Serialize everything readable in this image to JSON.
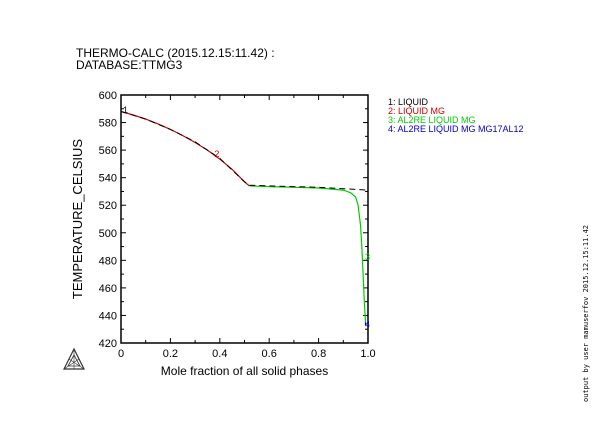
{
  "header": {
    "title_line1": "THERMO-CALC (2015.12.15:11.42) :",
    "title_line2": "DATABASE:TTMG3"
  },
  "side_note": "output by user mamuserfov 2015.12.15:11.42",
  "colors": {
    "axes": "#000000",
    "liquid_mg": "#cc0000",
    "al2re_liquid_mg": "#00cc00",
    "al2re_liquid_mg_mg17al12": "#0000cc",
    "dashed_reference": "#000000"
  },
  "chart_data": {
    "type": "line",
    "title": "THERMO-CALC (2015.12.15:11.42) : DATABASE:TTMG3",
    "xlabel": "Mole fraction of all solid phases",
    "ylabel": "TEMPERATURE_CELSIUS",
    "xlim": [
      0,
      1
    ],
    "ylim": [
      420,
      600
    ],
    "xticks": [
      0,
      0.2,
      0.4,
      0.6,
      0.8,
      1.0
    ],
    "xtick_labels": [
      "0",
      "0.2",
      "0.4",
      "0.6",
      "0.8",
      "1.0"
    ],
    "yticks": [
      420,
      440,
      460,
      480,
      500,
      520,
      540,
      560,
      580,
      600
    ],
    "ytick_labels": [
      "420",
      "440",
      "460",
      "480",
      "500",
      "520",
      "540",
      "560",
      "580",
      "600"
    ],
    "legend_position": "top-right",
    "series": [
      {
        "name": "2: LIQUID MG",
        "label": "2",
        "color": "#cc0000",
        "style": "solid",
        "x": [
          0.0,
          0.05,
          0.1,
          0.15,
          0.2,
          0.25,
          0.3,
          0.35,
          0.4,
          0.45,
          0.5,
          0.52
        ],
        "y": [
          588,
          585.5,
          582.5,
          579,
          575,
          570.5,
          565.5,
          560,
          553.5,
          546,
          537,
          534
        ]
      },
      {
        "name": "3: AL2RE LIQUID MG",
        "label": "3",
        "color": "#00cc00",
        "style": "solid",
        "x": [
          0.52,
          0.6,
          0.7,
          0.8,
          0.9,
          0.93,
          0.95,
          0.96,
          0.97,
          0.975,
          0.98,
          0.985,
          0.99
        ],
        "y": [
          534,
          533.5,
          533,
          532.5,
          531,
          529,
          526,
          520,
          505,
          490,
          470,
          450,
          435
        ]
      },
      {
        "name": "4: AL2RE LIQUID MG MG17AL12",
        "label": "4",
        "color": "#0000cc",
        "style": "solid",
        "x": [
          0.99,
          0.99
        ],
        "y": [
          435,
          433
        ]
      },
      {
        "name": "reference",
        "color": "#000000",
        "style": "dashed",
        "x": [
          0.0,
          0.1,
          0.2,
          0.3,
          0.4,
          0.5,
          0.52,
          0.6,
          0.7,
          0.8,
          0.9,
          1.0
        ],
        "y": [
          588,
          582.5,
          575,
          566,
          554,
          537,
          534.5,
          534,
          533.5,
          533,
          532,
          531
        ]
      }
    ],
    "legend": [
      "1: LIQUID",
      "2: LIQUID MG",
      "3: AL2RE LIQUID MG",
      "4: AL2RE LIQUID MG MG17AL12"
    ],
    "legend_colors": [
      "#000000",
      "#cc0000",
      "#00cc00",
      "#0000cc"
    ],
    "annotations": [
      {
        "text": "1",
        "x": 0.01,
        "y": 590,
        "color": "#000000"
      },
      {
        "text": "2",
        "x": 0.38,
        "y": 558,
        "color": "#cc0000"
      },
      {
        "text": "3",
        "x": 0.99,
        "y": 483,
        "color": "#00cc00"
      },
      {
        "text": "4",
        "x": 0.99,
        "y": 434,
        "color": "#0000cc"
      }
    ]
  }
}
